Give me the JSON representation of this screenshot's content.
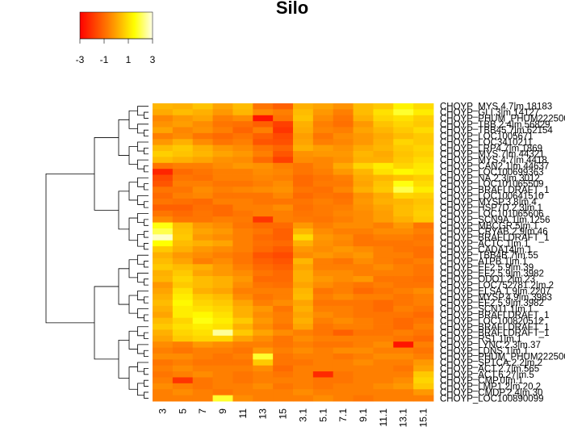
{
  "chart_data": {
    "type": "heatmap",
    "title": "Silo",
    "color_scale": {
      "ticks": [
        "-3",
        "-1",
        "1",
        "3"
      ],
      "min": -3,
      "max": 3,
      "stops": [
        "#ff0000",
        "#ff8000",
        "#ffff00",
        "#ffffff"
      ]
    },
    "columns": [
      "3",
      "5",
      "7",
      "9",
      "11",
      "13",
      "15",
      "3.1",
      "5.1",
      "7.1",
      "9.1",
      "11.1",
      "13.1",
      "15.1"
    ],
    "rows": [
      "CHOYP_MYS.4.7|m.18183",
      "CHOYP_GLI.3|m.14127",
      "CHOYP_PHUM_PHUM222500",
      "CHOYP_TBB.2.4|m.56829",
      "CHOYP_TBB45.7|m.62154",
      "CHOYP_LOC1005671",
      "CHOYP_LOC3410211",
      "CHOYP_LRP4.7|m.1869",
      "CHOYP_MYS.7|m.44321",
      "CHOYP_MYS.4.7|m.4418",
      "CHOYP_CAN2.1|m.44637",
      "CHOYP_LOC100699363",
      "CHOYP_NA.2.3|m.3012",
      "CHOYP_LOC101065509",
      "CHOYP_BRAFLDRAFT_1",
      "CHOYP_LOC100641510",
      "CHOYP_MYSP.3.8|m.4",
      "CHOYP_HSP7D.2.3|m.1",
      "CHOYP_LOC101065606",
      "CHOYP_SCN9A.1|m.1256",
      "CHOYP_MBCGR.5|m.1",
      "CHOYP_CRYAB.2.9|m.46",
      "CHOYP_BRAFLDRAFT_1",
      "CHOYP_ACTC.1|m.1",
      "CHOYP_CADA14|m.1",
      "CHOYP_TBB4B.7|m.55",
      "CHOYP_ATPB.1|m.1",
      "CHOYP_EF2.5.9|m.39",
      "CHOYP_EF2.5.9|m.3982",
      "CHOYP_ODO1.2|m.23",
      "CHOYP_LOC752781.2|m.2",
      "CHOYP_ELSA.1.9|m.2207",
      "CHOYP_MYSP.4.9|m.3983",
      "CHOYP_EF2.5.9|m.3982",
      "CHOYP_SCN11.1|m.1",
      "CHOYP_BRAFLDRAFT_1",
      "CHOYP_LOC100820512",
      "CHOYP_BRAFLDRAFT_1",
      "CHOYP_BRAFLDRAFT_1",
      "CHOYP_RS1.1|m.1",
      "CHOYP_LYNC.2.3|m.37",
      "CHOYP_LDNS.1|m.1",
      "CHOYP_PHUM_PHUM222500",
      "CHOYP_SPTCA.2.2|m.2",
      "CHOYP_ACT.2.7|m.565",
      "CHOYP_ACT.6.27|m.5",
      "CHOYP_CMP.0|m.1",
      "CHOYP_LMP1.2|m.20.2",
      "CHOYP_CMDP.2.4|m.30",
      "CHOYP_LOC100890099"
    ],
    "values": [
      [
        0.3,
        0.2,
        0.5,
        0.0,
        0.4,
        -0.8,
        -1.2,
        0.2,
        0.0,
        -0.3,
        0.4,
        0.6,
        1.3,
        0.9
      ],
      [
        0.1,
        0.4,
        0.2,
        -0.2,
        0.3,
        -0.4,
        -0.6,
        0.4,
        -0.2,
        -0.6,
        0.4,
        1.0,
        1.8,
        1.2
      ],
      [
        -0.5,
        -0.2,
        0.0,
        -0.6,
        -0.4,
        -2.6,
        -0.8,
        0.5,
        -0.4,
        -0.8,
        0.2,
        0.8,
        1.0,
        0.7
      ],
      [
        -0.3,
        -0.1,
        -0.4,
        -0.8,
        -0.9,
        -1.2,
        -1.8,
        0.2,
        -0.6,
        -0.9,
        -0.2,
        0.5,
        0.8,
        0.6
      ],
      [
        0.0,
        -0.5,
        -0.3,
        -0.6,
        -1.1,
        -0.6,
        -2.0,
        0.1,
        -0.5,
        -0.6,
        0.0,
        0.3,
        0.6,
        0.9
      ],
      [
        -0.6,
        -0.4,
        -0.8,
        -1.0,
        -0.8,
        -1.2,
        -1.6,
        -0.1,
        -0.8,
        -0.4,
        -0.2,
        0.1,
        0.4,
        0.6
      ],
      [
        -0.2,
        0.2,
        -0.4,
        -0.8,
        -0.6,
        -1.4,
        -1.5,
        0.0,
        -0.6,
        -0.5,
        -0.2,
        0.2,
        0.8,
        0.6
      ],
      [
        0.4,
        0.6,
        0.2,
        -0.2,
        -0.4,
        -0.8,
        -1.1,
        0.2,
        -0.1,
        -0.3,
        0.1,
        0.3,
        0.6,
        0.8
      ],
      [
        0.7,
        0.5,
        0.3,
        0.0,
        -0.2,
        -0.6,
        -1.4,
        -0.3,
        -0.2,
        -0.2,
        0.3,
        0.1,
        0.5,
        0.7
      ],
      [
        0.4,
        0.2,
        0.0,
        -0.3,
        -0.4,
        -1.0,
        -1.8,
        -0.4,
        -0.5,
        -0.3,
        0.2,
        0.2,
        0.6,
        0.9
      ],
      [
        -0.8,
        -0.6,
        -0.6,
        -0.4,
        -0.2,
        -0.3,
        -0.6,
        -0.8,
        -0.5,
        0.1,
        0.8,
        1.2,
        0.8,
        1.1
      ],
      [
        -2.3,
        -1.0,
        -0.8,
        -0.6,
        -0.6,
        -0.4,
        -0.5,
        -0.8,
        -0.6,
        -0.2,
        0.3,
        1.0,
        1.4,
        1.2
      ],
      [
        -1.6,
        -0.8,
        -0.9,
        -0.6,
        -0.6,
        -0.5,
        -0.6,
        -1.0,
        -0.8,
        -0.6,
        0.1,
        0.3,
        0.5,
        0.7
      ],
      [
        -1.4,
        -0.6,
        -0.6,
        -0.8,
        -0.8,
        -0.6,
        -0.4,
        -1.0,
        -0.7,
        -0.7,
        0.0,
        0.5,
        1.6,
        0.9
      ],
      [
        -0.8,
        -0.8,
        -0.4,
        -0.6,
        -0.5,
        -0.4,
        -0.3,
        -0.8,
        -0.9,
        -0.5,
        0.2,
        0.6,
        2.0,
        1.2
      ],
      [
        -1.0,
        -0.6,
        -0.5,
        -0.8,
        -0.8,
        -0.8,
        -0.5,
        -1.0,
        -0.8,
        -0.9,
        -0.3,
        0.1,
        0.8,
        0.7
      ],
      [
        -0.8,
        -0.9,
        -1.0,
        -0.6,
        -0.6,
        -0.8,
        -0.8,
        -0.8,
        -0.6,
        -0.8,
        -0.2,
        0.2,
        0.3,
        0.5
      ],
      [
        -1.2,
        -1.2,
        -0.9,
        -1.0,
        -0.6,
        -0.6,
        -0.4,
        -0.9,
        -0.7,
        -0.6,
        -0.3,
        0.0,
        0.4,
        0.6
      ],
      [
        -0.8,
        -1.0,
        -0.8,
        -1.0,
        -0.8,
        -0.6,
        -0.6,
        -0.8,
        -0.7,
        -0.5,
        -0.4,
        -0.1,
        0.4,
        0.7
      ],
      [
        -0.4,
        -0.8,
        -0.8,
        -0.6,
        -0.7,
        -2.0,
        -0.6,
        -0.7,
        -0.8,
        -0.6,
        -0.4,
        -0.1,
        0.2,
        0.6
      ],
      [
        1.6,
        0.4,
        -0.2,
        -0.4,
        -0.8,
        -1.0,
        -1.0,
        -0.2,
        -0.6,
        -0.4,
        -0.4,
        -0.6,
        -0.2,
        -0.8
      ],
      [
        2.0,
        0.5,
        0.0,
        -0.2,
        -0.6,
        -0.8,
        -1.2,
        0.3,
        -0.4,
        -0.6,
        -0.6,
        -0.4,
        -0.4,
        -0.6
      ],
      [
        2.8,
        0.6,
        -0.2,
        -0.4,
        -0.6,
        -1.0,
        -1.2,
        0.9,
        -0.2,
        -0.4,
        -0.8,
        -0.6,
        -0.6,
        -0.8
      ],
      [
        1.5,
        0.4,
        0.2,
        0.0,
        -0.6,
        -0.9,
        -1.0,
        0.2,
        -0.3,
        -0.5,
        -0.8,
        -0.8,
        -0.8,
        -0.7
      ],
      [
        0.6,
        0.2,
        -0.2,
        -0.4,
        -0.6,
        -1.0,
        -1.3,
        -0.2,
        -0.4,
        -0.2,
        -0.4,
        -0.6,
        -0.8,
        -0.9
      ],
      [
        0.2,
        -0.2,
        -0.4,
        -0.6,
        -0.8,
        -1.4,
        -1.6,
        -0.4,
        -0.2,
        -0.4,
        -0.2,
        -0.6,
        -0.6,
        -0.9
      ],
      [
        0.4,
        0.0,
        -0.6,
        -0.4,
        -0.8,
        -1.2,
        -1.4,
        0.3,
        -0.6,
        -0.8,
        -0.4,
        -0.6,
        -0.8,
        -0.6
      ],
      [
        0.6,
        0.4,
        0.2,
        -0.2,
        -0.6,
        -1.0,
        -1.2,
        0.0,
        -0.6,
        -0.6,
        -0.6,
        -0.4,
        -0.6,
        -0.8
      ],
      [
        0.2,
        0.6,
        0.0,
        -0.2,
        -0.4,
        -0.8,
        -1.0,
        0.2,
        -0.4,
        -0.4,
        -0.6,
        -0.6,
        -0.6,
        -0.8
      ],
      [
        0.3,
        0.8,
        0.4,
        0.2,
        -0.2,
        -1.0,
        -1.0,
        0.2,
        -0.2,
        -0.4,
        -0.2,
        -0.8,
        -0.8,
        -0.9
      ],
      [
        -0.2,
        0.6,
        0.4,
        0.2,
        -0.4,
        -0.8,
        -0.9,
        0.0,
        -0.4,
        -0.6,
        -0.8,
        -0.6,
        -0.8,
        -0.8
      ],
      [
        0.0,
        1.0,
        0.2,
        0.0,
        -0.6,
        -0.6,
        -0.6,
        0.3,
        -0.8,
        -0.6,
        -1.0,
        -0.8,
        -0.6,
        -0.4
      ],
      [
        0.2,
        1.2,
        0.6,
        0.4,
        -0.4,
        -0.8,
        -0.6,
        0.4,
        -0.6,
        -0.4,
        -0.6,
        -0.6,
        -0.8,
        -0.6
      ],
      [
        0.4,
        1.4,
        0.8,
        0.6,
        0.0,
        -0.6,
        -0.4,
        0.0,
        -0.8,
        -0.8,
        -0.8,
        -1.0,
        -0.8,
        -0.6
      ],
      [
        0.2,
        1.2,
        1.0,
        0.8,
        0.2,
        -0.2,
        -0.8,
        0.2,
        -0.6,
        -0.6,
        -0.8,
        -1.0,
        -0.6,
        -0.8
      ],
      [
        0.0,
        1.2,
        1.4,
        1.0,
        0.2,
        -0.4,
        -0.6,
        0.0,
        -0.4,
        -0.6,
        -0.8,
        -0.8,
        -0.8,
        -1.0
      ],
      [
        0.4,
        0.8,
        1.6,
        1.2,
        0.6,
        -0.2,
        -0.6,
        0.2,
        -0.6,
        -0.4,
        -0.6,
        -0.8,
        -1.0,
        -0.8
      ],
      [
        0.6,
        1.0,
        1.2,
        1.0,
        0.2,
        -0.4,
        -0.8,
        0.0,
        -0.8,
        -0.6,
        -0.6,
        -0.8,
        -1.0,
        -0.6
      ],
      [
        0.2,
        0.8,
        1.0,
        2.5,
        0.6,
        0.0,
        -0.4,
        -0.6,
        -0.8,
        -1.2,
        -0.8,
        -0.8,
        -0.6,
        -0.8
      ],
      [
        0.0,
        0.6,
        0.8,
        0.8,
        0.0,
        -0.4,
        -0.8,
        -0.4,
        -0.6,
        -0.6,
        -0.6,
        -0.6,
        -0.8,
        -1.0
      ],
      [
        -0.4,
        -0.6,
        -0.2,
        -0.4,
        -0.6,
        -0.6,
        -0.8,
        -0.6,
        -0.8,
        -0.8,
        -0.6,
        -0.4,
        -2.6,
        -0.6
      ],
      [
        -0.6,
        -0.8,
        -0.6,
        -0.6,
        -0.8,
        -0.2,
        -0.6,
        -0.4,
        -0.6,
        -0.4,
        -0.4,
        -0.6,
        -0.6,
        -0.8
      ],
      [
        -0.4,
        -0.4,
        -0.6,
        -0.8,
        -0.6,
        1.8,
        -0.8,
        -0.6,
        -0.6,
        -0.8,
        -0.6,
        -0.4,
        -0.4,
        -0.6
      ],
      [
        -0.8,
        -0.6,
        -0.8,
        -0.8,
        -0.8,
        0.6,
        -0.8,
        -0.8,
        -0.6,
        -0.6,
        -0.4,
        -0.6,
        -0.6,
        -0.2
      ],
      [
        -0.6,
        -0.4,
        -0.6,
        -0.6,
        -0.6,
        -0.4,
        -1.0,
        -0.6,
        -0.6,
        -0.6,
        -0.6,
        -0.6,
        -0.8,
        0.0
      ],
      [
        -0.8,
        -0.6,
        -0.4,
        -0.6,
        -0.8,
        -0.6,
        -0.8,
        -0.6,
        -2.2,
        -0.8,
        -0.6,
        -0.6,
        -0.6,
        0.6
      ],
      [
        -0.6,
        -2.0,
        -0.8,
        -0.6,
        -0.8,
        -0.6,
        -0.6,
        -0.6,
        -0.8,
        -0.8,
        -0.6,
        -0.6,
        -0.4,
        0.8
      ],
      [
        -0.4,
        -0.6,
        -0.8,
        -0.6,
        -0.6,
        -0.4,
        -0.8,
        -0.6,
        -0.8,
        -0.6,
        -0.6,
        -0.4,
        -0.2,
        0.6
      ],
      [
        -0.6,
        -0.4,
        -0.6,
        -0.8,
        -0.6,
        -0.6,
        -0.6,
        -0.4,
        -0.6,
        -0.6,
        -0.6,
        -0.6,
        -0.6,
        -0.2
      ],
      [
        -0.6,
        -0.6,
        -0.6,
        1.8,
        -0.4,
        -0.6,
        -0.6,
        -0.6,
        -0.4,
        -0.6,
        -0.8,
        -0.6,
        -0.6,
        -0.6
      ]
    ]
  }
}
